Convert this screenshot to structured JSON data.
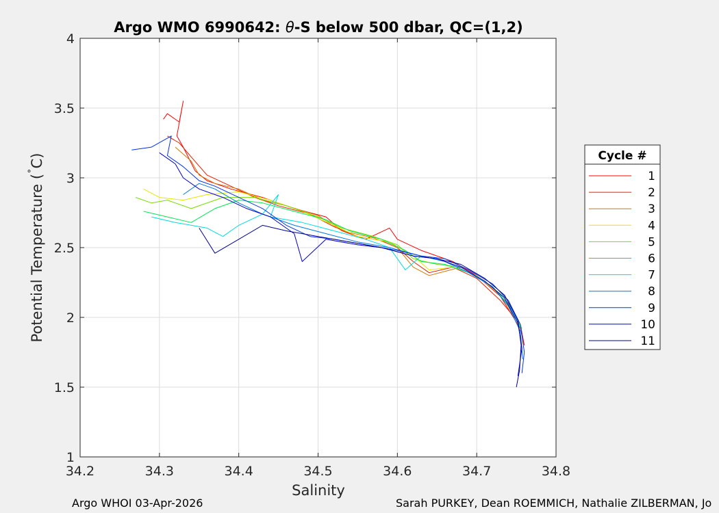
{
  "chart_data": {
    "type": "line",
    "title": "Argo WMO 6990642: θ-S below 500 dbar,  QC=(1,2)",
    "title_parts": {
      "prefix": "Argo WMO 6990642: ",
      "theta": "θ",
      "suffix": "-S below 500 dbar,  QC=(1,2)"
    },
    "xlabel": "Salinity",
    "ylabel_parts": {
      "main": "Potential Temperature (",
      "degree": "˚",
      "unit": "C)"
    },
    "xlim": [
      34.2,
      34.8
    ],
    "ylim": [
      1,
      4
    ],
    "x_ticks": [
      "34.2",
      "34.3",
      "34.4",
      "34.5",
      "34.6",
      "34.7",
      "34.8"
    ],
    "y_ticks": [
      "1",
      "1.5",
      "2",
      "2.5",
      "3",
      "3.5",
      "4"
    ],
    "grid": true,
    "legend": {
      "title": "Cycle #",
      "placement": "right-outside"
    },
    "series": [
      {
        "name": "1",
        "color": "#ff0000",
        "points": [
          [
            34.305,
            3.42
          ],
          [
            34.31,
            3.46
          ],
          [
            34.325,
            3.4
          ],
          [
            34.33,
            3.55
          ],
          [
            34.322,
            3.3
          ],
          [
            34.33,
            3.22
          ],
          [
            34.345,
            3.05
          ],
          [
            34.36,
            2.98
          ],
          [
            34.39,
            2.92
          ],
          [
            34.43,
            2.86
          ],
          [
            34.47,
            2.78
          ],
          [
            34.51,
            2.72
          ],
          [
            34.53,
            2.62
          ],
          [
            34.56,
            2.56
          ],
          [
            34.59,
            2.64
          ],
          [
            34.6,
            2.56
          ],
          [
            34.63,
            2.48
          ],
          [
            34.67,
            2.4
          ],
          [
            34.7,
            2.3
          ],
          [
            34.73,
            2.15
          ],
          [
            34.755,
            1.92
          ],
          [
            34.76,
            1.8
          ]
        ]
      },
      {
        "name": "2",
        "color": "#e61e00",
        "points": [
          [
            34.31,
            3.3
          ],
          [
            34.325,
            3.25
          ],
          [
            34.34,
            3.15
          ],
          [
            34.36,
            3.02
          ],
          [
            34.39,
            2.94
          ],
          [
            34.42,
            2.86
          ],
          [
            34.45,
            2.8
          ],
          [
            34.49,
            2.74
          ],
          [
            34.52,
            2.65
          ],
          [
            34.55,
            2.58
          ],
          [
            34.58,
            2.55
          ],
          [
            34.6,
            2.5
          ],
          [
            34.62,
            2.4
          ],
          [
            34.64,
            2.32
          ],
          [
            34.67,
            2.36
          ],
          [
            34.7,
            2.28
          ],
          [
            34.73,
            2.12
          ],
          [
            34.755,
            1.95
          ],
          [
            34.76,
            1.8
          ]
        ]
      },
      {
        "name": "3",
        "color": "#d27800",
        "points": [
          [
            34.32,
            3.22
          ],
          [
            34.34,
            3.12
          ],
          [
            34.35,
            3.02
          ],
          [
            34.37,
            2.96
          ],
          [
            34.4,
            2.92
          ],
          [
            34.43,
            2.84
          ],
          [
            34.46,
            2.8
          ],
          [
            34.5,
            2.73
          ],
          [
            34.53,
            2.62
          ],
          [
            34.57,
            2.57
          ],
          [
            34.6,
            2.5
          ],
          [
            34.62,
            2.36
          ],
          [
            34.64,
            2.3
          ],
          [
            34.68,
            2.36
          ],
          [
            34.71,
            2.26
          ],
          [
            34.74,
            2.1
          ],
          [
            34.757,
            1.92
          ]
        ]
      },
      {
        "name": "4",
        "color": "#e6e600",
        "points": [
          [
            34.28,
            2.92
          ],
          [
            34.3,
            2.86
          ],
          [
            34.33,
            2.84
          ],
          [
            34.36,
            2.88
          ],
          [
            34.4,
            2.9
          ],
          [
            34.44,
            2.84
          ],
          [
            34.48,
            2.76
          ],
          [
            34.52,
            2.66
          ],
          [
            34.55,
            2.58
          ],
          [
            34.59,
            2.54
          ],
          [
            34.62,
            2.44
          ],
          [
            34.64,
            2.34
          ],
          [
            34.67,
            2.36
          ],
          [
            34.7,
            2.3
          ],
          [
            34.73,
            2.16
          ],
          [
            34.755,
            1.94
          ]
        ]
      },
      {
        "name": "5",
        "color": "#78dc00",
        "points": [
          [
            34.27,
            2.86
          ],
          [
            34.29,
            2.82
          ],
          [
            34.31,
            2.84
          ],
          [
            34.34,
            2.78
          ],
          [
            34.38,
            2.86
          ],
          [
            34.42,
            2.86
          ],
          [
            34.46,
            2.8
          ],
          [
            34.5,
            2.72
          ],
          [
            34.53,
            2.64
          ],
          [
            34.57,
            2.58
          ],
          [
            34.6,
            2.52
          ],
          [
            34.62,
            2.42
          ],
          [
            34.65,
            2.38
          ],
          [
            34.68,
            2.36
          ],
          [
            34.71,
            2.26
          ],
          [
            34.74,
            2.12
          ],
          [
            34.757,
            1.92
          ]
        ]
      },
      {
        "name": "6",
        "color": "#00e650",
        "points": [
          [
            34.28,
            2.76
          ],
          [
            34.31,
            2.72
          ],
          [
            34.34,
            2.68
          ],
          [
            34.37,
            2.78
          ],
          [
            34.4,
            2.84
          ],
          [
            34.43,
            2.82
          ],
          [
            34.47,
            2.76
          ],
          [
            34.51,
            2.7
          ],
          [
            34.54,
            2.62
          ],
          [
            34.58,
            2.56
          ],
          [
            34.61,
            2.48
          ],
          [
            34.63,
            2.4
          ],
          [
            34.66,
            2.38
          ],
          [
            34.69,
            2.32
          ],
          [
            34.72,
            2.22
          ],
          [
            34.745,
            2.06
          ],
          [
            34.757,
            1.9
          ]
        ]
      },
      {
        "name": "7",
        "color": "#00dcdc",
        "points": [
          [
            34.29,
            2.72
          ],
          [
            34.32,
            2.68
          ],
          [
            34.36,
            2.64
          ],
          [
            34.38,
            2.58
          ],
          [
            34.4,
            2.66
          ],
          [
            34.43,
            2.74
          ],
          [
            34.45,
            2.88
          ],
          [
            34.44,
            2.72
          ],
          [
            34.48,
            2.68
          ],
          [
            34.52,
            2.62
          ],
          [
            34.56,
            2.56
          ],
          [
            34.59,
            2.5
          ],
          [
            34.61,
            2.34
          ],
          [
            34.63,
            2.44
          ],
          [
            34.66,
            2.4
          ],
          [
            34.69,
            2.32
          ],
          [
            34.72,
            2.22
          ],
          [
            34.745,
            2.05
          ],
          [
            34.757,
            1.9
          ]
        ]
      },
      {
        "name": "8",
        "color": "#0078e6",
        "points": [
          [
            34.33,
            2.88
          ],
          [
            34.35,
            2.96
          ],
          [
            34.37,
            2.92
          ],
          [
            34.4,
            2.82
          ],
          [
            34.43,
            2.74
          ],
          [
            34.47,
            2.66
          ],
          [
            34.51,
            2.6
          ],
          [
            34.55,
            2.54
          ],
          [
            34.59,
            2.5
          ],
          [
            34.63,
            2.44
          ],
          [
            34.66,
            2.4
          ],
          [
            34.69,
            2.32
          ],
          [
            34.72,
            2.22
          ],
          [
            34.74,
            2.08
          ],
          [
            34.755,
            1.9
          ],
          [
            34.758,
            1.7
          ]
        ]
      },
      {
        "name": "9",
        "color": "#0032e6",
        "points": [
          [
            34.265,
            3.2
          ],
          [
            34.29,
            3.22
          ],
          [
            34.315,
            3.3
          ],
          [
            34.31,
            3.16
          ],
          [
            34.33,
            3.08
          ],
          [
            34.35,
            2.98
          ],
          [
            34.37,
            2.94
          ],
          [
            34.4,
            2.86
          ],
          [
            34.43,
            2.78
          ],
          [
            34.46,
            2.66
          ],
          [
            34.49,
            2.58
          ],
          [
            34.52,
            2.56
          ],
          [
            34.56,
            2.52
          ],
          [
            34.6,
            2.48
          ],
          [
            34.63,
            2.44
          ],
          [
            34.66,
            2.42
          ],
          [
            34.69,
            2.34
          ],
          [
            34.72,
            2.24
          ],
          [
            34.74,
            2.12
          ],
          [
            34.755,
            1.95
          ],
          [
            34.76,
            1.75
          ],
          [
            34.757,
            1.6
          ]
        ]
      },
      {
        "name": "10",
        "color": "#0000c8",
        "points": [
          [
            34.3,
            3.18
          ],
          [
            34.32,
            3.1
          ],
          [
            34.33,
            3.0
          ],
          [
            34.35,
            2.92
          ],
          [
            34.38,
            2.86
          ],
          [
            34.41,
            2.78
          ],
          [
            34.44,
            2.72
          ],
          [
            34.47,
            2.6
          ],
          [
            34.48,
            2.4
          ],
          [
            34.51,
            2.56
          ],
          [
            34.55,
            2.52
          ],
          [
            34.58,
            2.5
          ],
          [
            34.62,
            2.44
          ],
          [
            34.65,
            2.42
          ],
          [
            34.68,
            2.36
          ],
          [
            34.71,
            2.26
          ],
          [
            34.735,
            2.14
          ],
          [
            34.752,
            1.96
          ],
          [
            34.757,
            1.78
          ],
          [
            34.752,
            1.58
          ]
        ]
      },
      {
        "name": "11",
        "color": "#000096",
        "points": [
          [
            34.35,
            2.64
          ],
          [
            34.37,
            2.46
          ],
          [
            34.4,
            2.56
          ],
          [
            34.43,
            2.66
          ],
          [
            34.46,
            2.62
          ],
          [
            34.5,
            2.58
          ],
          [
            34.54,
            2.54
          ],
          [
            34.58,
            2.5
          ],
          [
            34.62,
            2.44
          ],
          [
            34.65,
            2.42
          ],
          [
            34.68,
            2.38
          ],
          [
            34.71,
            2.28
          ],
          [
            34.735,
            2.16
          ],
          [
            34.752,
            1.98
          ],
          [
            34.756,
            1.8
          ],
          [
            34.754,
            1.62
          ],
          [
            34.75,
            1.5
          ]
        ]
      }
    ]
  },
  "footer": {
    "left": "Argo WHOI 03-Apr-2026",
    "right": "Sarah PURKEY, Dean ROEMMICH, Nathalie ZILBERMAN, Jo"
  }
}
